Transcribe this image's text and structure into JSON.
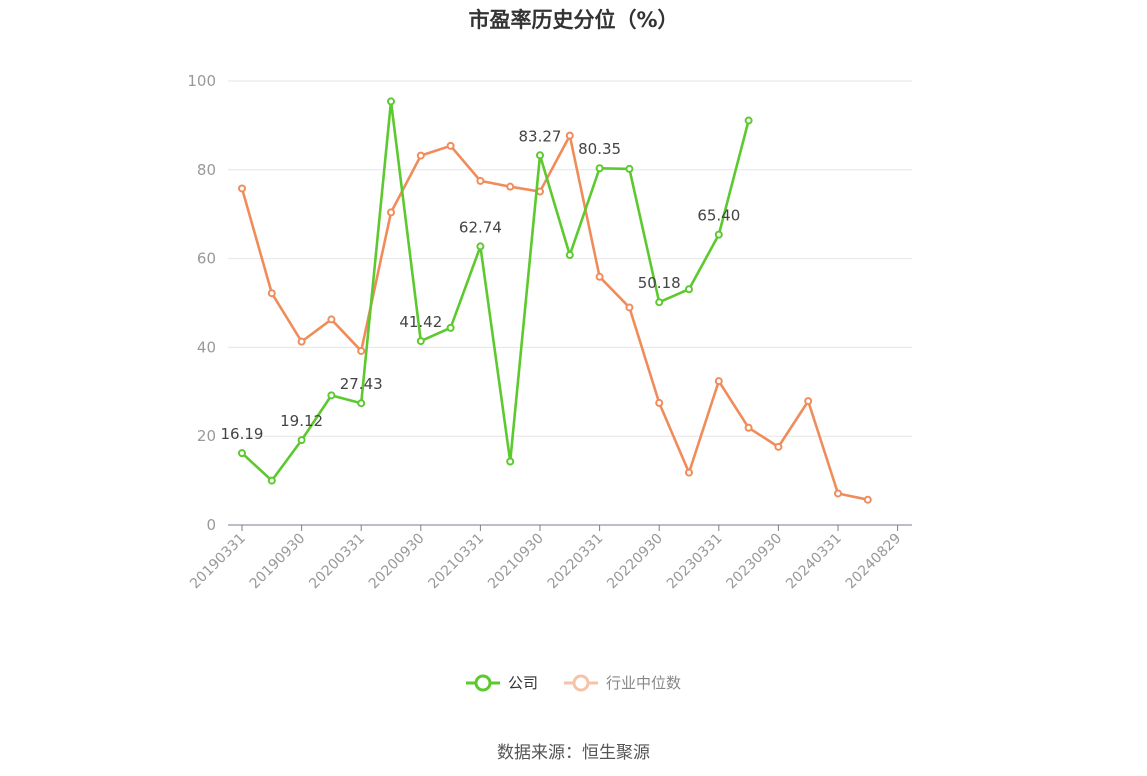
{
  "chart_data": {
    "type": "line",
    "title": "市盈率历史分位（%）",
    "ylim": [
      0,
      100
    ],
    "yticks": [
      "0",
      "20",
      "40",
      "60",
      "80",
      "100"
    ],
    "xtick_labels": [
      "20190331",
      "20190930",
      "20200331",
      "20200930",
      "20210331",
      "20210930",
      "20220331",
      "20220930",
      "20230331",
      "20230930",
      "20240331",
      "20240829"
    ],
    "x": [
      "20190331",
      "20190630",
      "20190930",
      "20191231",
      "20200331",
      "20200630",
      "20200930",
      "20201231",
      "20210331",
      "20210630",
      "20210930",
      "20211231",
      "20220331",
      "20220630",
      "20220930",
      "20221231",
      "20230331",
      "20230630",
      "20230930",
      "20231231",
      "20240331",
      "20240630"
    ],
    "series": [
      {
        "name": "公司",
        "color": "#5cc92e",
        "values": [
          16.19,
          10.0,
          19.12,
          29.2,
          27.43,
          95.4,
          41.42,
          44.4,
          62.74,
          14.3,
          83.27,
          60.8,
          80.35,
          80.2,
          50.18,
          53.1,
          65.4,
          91.1,
          null,
          null,
          null,
          null
        ],
        "labels": [
          "16.19",
          null,
          "19.12",
          null,
          "27.43",
          null,
          "41.42",
          null,
          "62.74",
          null,
          "83.27",
          null,
          "80.35",
          null,
          "50.18",
          null,
          "65.40",
          null,
          null,
          null,
          null,
          null
        ]
      },
      {
        "name": "行业中位数",
        "color": "#f08c5a",
        "values": [
          75.8,
          52.2,
          41.3,
          46.3,
          39.2,
          70.4,
          83.2,
          85.4,
          77.5,
          76.2,
          75.1,
          87.7,
          55.9,
          49.0,
          27.5,
          11.8,
          32.4,
          21.9,
          17.6,
          27.9,
          7.1,
          5.7
        ]
      }
    ],
    "legend_position": "bottom"
  },
  "source": "数据来源：恒生聚源"
}
